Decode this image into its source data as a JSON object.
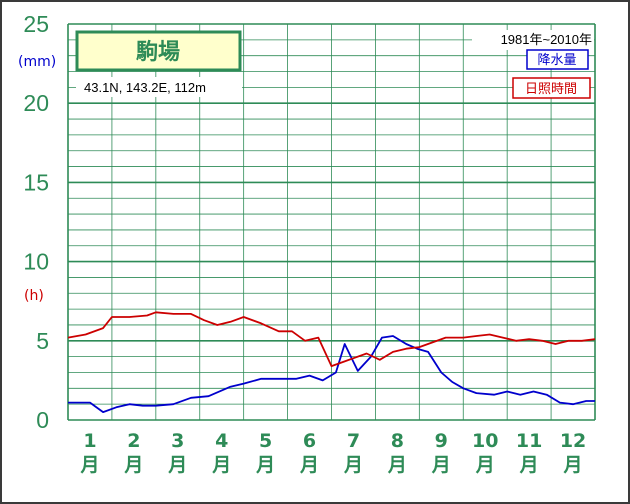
{
  "colors": {
    "axis": "#2e8b57",
    "grid": "#2e8b57",
    "precip": "#0000cc",
    "sunshine": "#cc0000",
    "station_box_fill": "#ffffcc",
    "station_box_border": "#2e8b57"
  },
  "header": {
    "station_name": "駒場",
    "location": "43.1N,  143.2E,  112m",
    "period": "1981年~2010年"
  },
  "legend": {
    "precip_label": "降水量",
    "sunshine_label": "日照時間"
  },
  "units": {
    "precip": "(mm)",
    "sunshine": "(h)"
  },
  "chart_data": {
    "type": "line",
    "ylim": [
      0,
      25
    ],
    "yticks": [
      "0",
      "5",
      "10",
      "15",
      "20",
      "25"
    ],
    "grid": true,
    "legend_position": "top-right",
    "categories": [
      "1",
      "2",
      "3",
      "4",
      "5",
      "6",
      "7",
      "8",
      "9",
      "10",
      "11",
      "12"
    ],
    "month_suffix": "月",
    "x_range": [
      1,
      13
    ],
    "series": [
      {
        "name": "降水量",
        "color": "#0000cc",
        "x": [
          1.0,
          1.5,
          1.8,
          2.1,
          2.4,
          2.7,
          3.0,
          3.4,
          3.8,
          4.2,
          4.7,
          5.0,
          5.4,
          5.8,
          6.2,
          6.5,
          6.8,
          7.1,
          7.3,
          7.6,
          7.9,
          8.15,
          8.4,
          8.7,
          8.95,
          9.2,
          9.5,
          9.75,
          10.0,
          10.3,
          10.7,
          11.0,
          11.3,
          11.6,
          11.9,
          12.2,
          12.5,
          12.8,
          13.0
        ],
        "y": [
          1.1,
          1.1,
          0.5,
          0.8,
          1.0,
          0.9,
          0.9,
          1.0,
          1.4,
          1.5,
          2.1,
          2.3,
          2.6,
          2.6,
          2.6,
          2.8,
          2.5,
          3.0,
          4.8,
          3.1,
          4.0,
          5.2,
          5.3,
          4.8,
          4.5,
          4.3,
          3.0,
          2.4,
          2.0,
          1.7,
          1.6,
          1.8,
          1.6,
          1.8,
          1.6,
          1.1,
          1.0,
          1.2,
          1.2
        ]
      },
      {
        "name": "日照時間",
        "color": "#cc0000",
        "x": [
          1.0,
          1.4,
          1.8,
          2.0,
          2.4,
          2.8,
          3.0,
          3.4,
          3.8,
          4.1,
          4.4,
          4.7,
          5.0,
          5.4,
          5.8,
          6.1,
          6.4,
          6.7,
          7.0,
          7.3,
          7.5,
          7.8,
          8.1,
          8.4,
          8.7,
          9.0,
          9.3,
          9.6,
          10.0,
          10.3,
          10.6,
          10.9,
          11.2,
          11.5,
          11.8,
          12.1,
          12.4,
          12.7,
          13.0
        ],
        "y": [
          5.2,
          5.4,
          5.8,
          6.5,
          6.5,
          6.6,
          6.8,
          6.7,
          6.7,
          6.3,
          6.0,
          6.2,
          6.5,
          6.1,
          5.6,
          5.6,
          5.0,
          5.2,
          3.4,
          3.7,
          3.9,
          4.2,
          3.8,
          4.3,
          4.5,
          4.6,
          4.9,
          5.2,
          5.2,
          5.3,
          5.4,
          5.2,
          5.0,
          5.1,
          5.0,
          4.8,
          5.0,
          5.0,
          5.1
        ]
      }
    ]
  }
}
